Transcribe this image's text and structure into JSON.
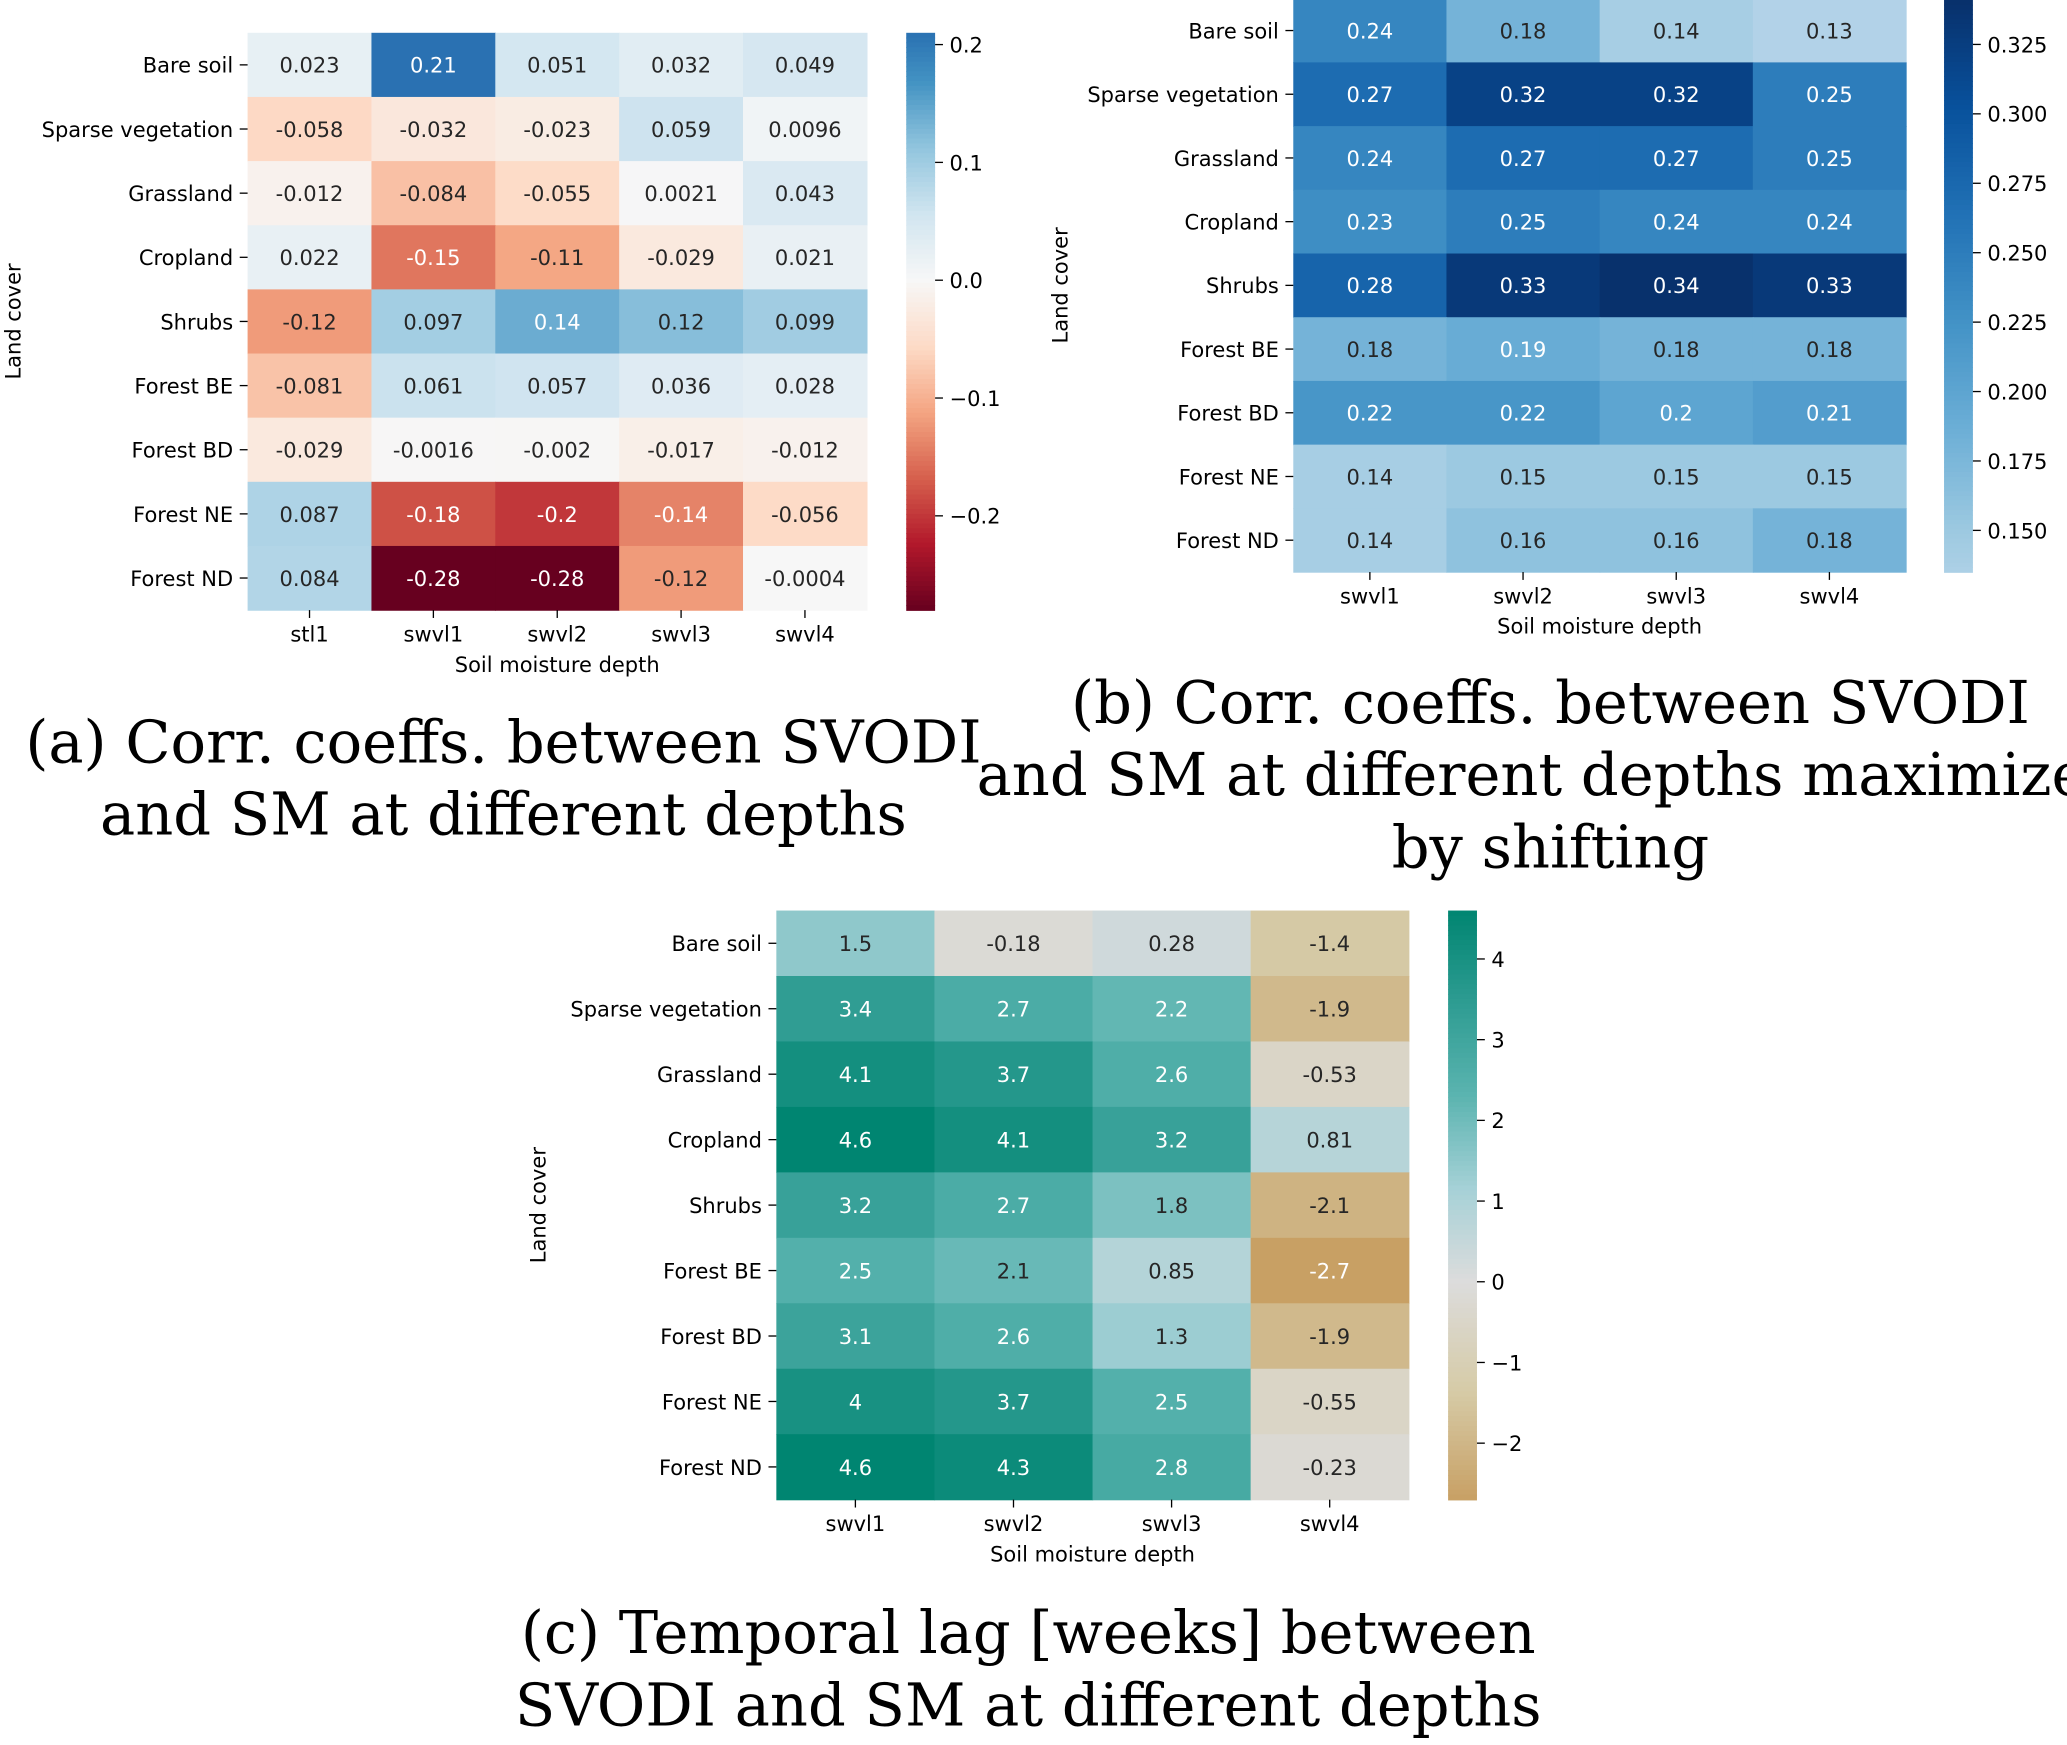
{
  "chart_data": [
    {
      "type": "heatmap",
      "id": "a",
      "caption": [
        "(a)   Corr. coeffs. between SVODI",
        "and SM at different depths"
      ],
      "xlabel": "Soil moisture depth",
      "ylabel": "Land cover",
      "columns": [
        "stl1",
        "swvl1",
        "swvl2",
        "swvl3",
        "swvl4"
      ],
      "rows": [
        "Bare soil",
        "Sparse vegetation",
        "Grassland",
        "Cropland",
        "Shrubs",
        "Forest BE",
        "Forest BD",
        "Forest NE",
        "Forest ND"
      ],
      "values": [
        [
          "0.023",
          "0.21",
          "0.051",
          "0.032",
          "0.049"
        ],
        [
          "-0.058",
          "-0.032",
          "-0.023",
          "0.059",
          "0.0096"
        ],
        [
          "-0.012",
          "-0.084",
          "-0.055",
          "0.0021",
          "0.043"
        ],
        [
          "0.022",
          "-0.15",
          "-0.11",
          "-0.029",
          "0.021"
        ],
        [
          "-0.12",
          "0.097",
          "0.14",
          "0.12",
          "0.099"
        ],
        [
          "-0.081",
          "0.061",
          "0.057",
          "0.036",
          "0.028"
        ],
        [
          "-0.029",
          "-0.0016",
          "-0.002",
          "-0.017",
          "-0.012"
        ],
        [
          "0.087",
          "-0.18",
          "-0.2",
          "-0.14",
          "-0.056"
        ],
        [
          "0.084",
          "-0.28",
          "-0.28",
          "-0.12",
          "-0.0004"
        ]
      ],
      "colormap": "RdBu",
      "center": 0,
      "vmin": -0.28,
      "vmax": 0.21,
      "colorbar_ticks": [
        0.2,
        0.1,
        0.0,
        -0.1,
        -0.2
      ],
      "colorbar_tick_labels": [
        "0.2",
        "0.1",
        "0.0",
        "−0.1",
        "−0.2"
      ]
    },
    {
      "type": "heatmap",
      "id": "b",
      "caption": [
        "(b)   Corr. coeffs. between SVODI",
        "and SM at different depths maximized",
        "by shifting"
      ],
      "xlabel": "Soil moisture depth",
      "ylabel": "Land cover",
      "columns": [
        "swvl1",
        "swvl2",
        "swvl3",
        "swvl4"
      ],
      "rows": [
        "Bare soil",
        "Sparse vegetation",
        "Grassland",
        "Cropland",
        "Shrubs",
        "Forest BE",
        "Forest BD",
        "Forest NE",
        "Forest ND"
      ],
      "values": [
        [
          "0.24",
          "0.18",
          "0.14",
          "0.13"
        ],
        [
          "0.27",
          "0.32",
          "0.32",
          "0.25"
        ],
        [
          "0.24",
          "0.27",
          "0.27",
          "0.25"
        ],
        [
          "0.23",
          "0.25",
          "0.24",
          "0.24"
        ],
        [
          "0.28",
          "0.33",
          "0.34",
          "0.33"
        ],
        [
          "0.18",
          "0.19",
          "0.18",
          "0.18"
        ],
        [
          "0.22",
          "0.22",
          "0.2",
          "0.21"
        ],
        [
          "0.14",
          "0.15",
          "0.15",
          "0.15"
        ],
        [
          "0.14",
          "0.16",
          "0.16",
          "0.18"
        ]
      ],
      "colormap": "Blues",
      "vmin": 0.135,
      "vmax": 0.341,
      "colorbar_ticks": [
        0.325,
        0.3,
        0.275,
        0.25,
        0.225,
        0.2,
        0.175,
        0.15
      ],
      "colorbar_tick_labels": [
        "0.325",
        "0.300",
        "0.275",
        "0.250",
        "0.225",
        "0.200",
        "0.175",
        "0.150"
      ]
    },
    {
      "type": "heatmap",
      "id": "c",
      "caption": [
        "(c)   Temporal lag [weeks] between",
        "SVODI and SM at different depths"
      ],
      "xlabel": "Soil moisture depth",
      "ylabel": "Land cover",
      "columns": [
        "swvl1",
        "swvl2",
        "swvl3",
        "swvl4"
      ],
      "rows": [
        "Bare soil",
        "Sparse vegetation",
        "Grassland",
        "Cropland",
        "Shrubs",
        "Forest BE",
        "Forest BD",
        "Forest NE",
        "Forest ND"
      ],
      "values": [
        [
          "1.5",
          "-0.18",
          "0.28",
          "-1.4"
        ],
        [
          "3.4",
          "2.7",
          "2.2",
          "-1.9"
        ],
        [
          "4.1",
          "3.7",
          "2.6",
          "-0.53"
        ],
        [
          "4.6",
          "4.1",
          "3.2",
          "0.81"
        ],
        [
          "3.2",
          "2.7",
          "1.8",
          "-2.1"
        ],
        [
          "2.5",
          "2.1",
          "0.85",
          "-2.7"
        ],
        [
          "3.1",
          "2.6",
          "1.3",
          "-1.9"
        ],
        [
          "4",
          "3.7",
          "2.5",
          "-0.55"
        ],
        [
          "4.6",
          "4.3",
          "2.8",
          "-0.23"
        ]
      ],
      "colormap": "BrBG",
      "center": 0,
      "vmin": -2.7,
      "vmax": 4.6,
      "colorbar_ticks": [
        4,
        3,
        2,
        1,
        0,
        -1,
        -2
      ],
      "colorbar_tick_labels": [
        "4",
        "3",
        "2",
        "1",
        "0",
        "−1",
        "−2"
      ]
    }
  ]
}
